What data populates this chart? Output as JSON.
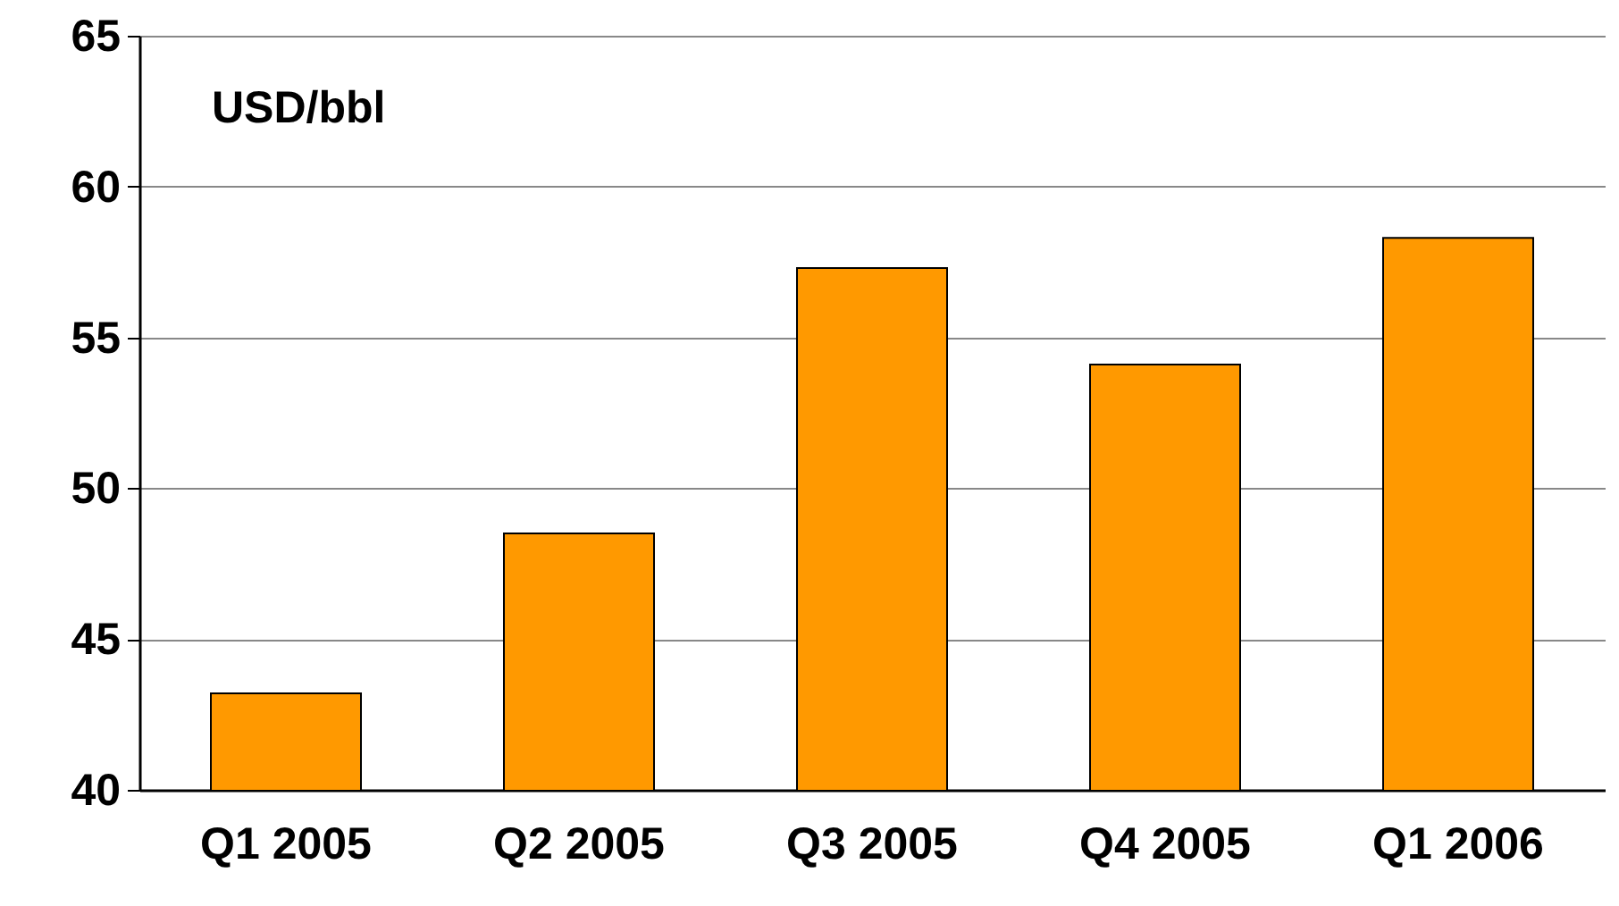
{
  "chart_data": {
    "type": "bar",
    "ylabel": "USD/bbl",
    "categories": [
      "Q1 2005",
      "Q2 2005",
      "Q3 2005",
      "Q4 2005",
      "Q1 2006"
    ],
    "values": [
      43.2,
      48.5,
      57.3,
      54.1,
      58.3
    ],
    "color": "#ff9900",
    "ylim": [
      40,
      65
    ],
    "yticks": [
      40,
      45,
      50,
      55,
      60,
      65
    ],
    "grid": "y"
  }
}
